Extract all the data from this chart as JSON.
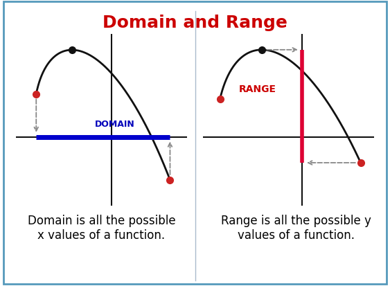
{
  "title": "Domain and Range",
  "title_color": "#cc0000",
  "title_fontsize": 18,
  "bg_color": "#ffffff",
  "panel_bg_color": "#c8daea",
  "border_color": "#5599bb",
  "domain_label": "DOMAIN",
  "domain_label_color": "#0000bb",
  "range_label": "RANGE",
  "range_label_color": "#cc0000",
  "domain_line_color": "#0000cc",
  "range_line_color": "#dd0033",
  "curve_color": "#111111",
  "dot_red": "#cc2222",
  "dot_black": "#111111",
  "axis_color": "#111111",
  "arrow_color": "#888888",
  "text1_line1": "Domain is all the possible",
  "text1_line2": "x values of a function.",
  "text2_line1": "Range is all the possible y",
  "text2_line2": "values of a function.",
  "text_fontsize": 12
}
